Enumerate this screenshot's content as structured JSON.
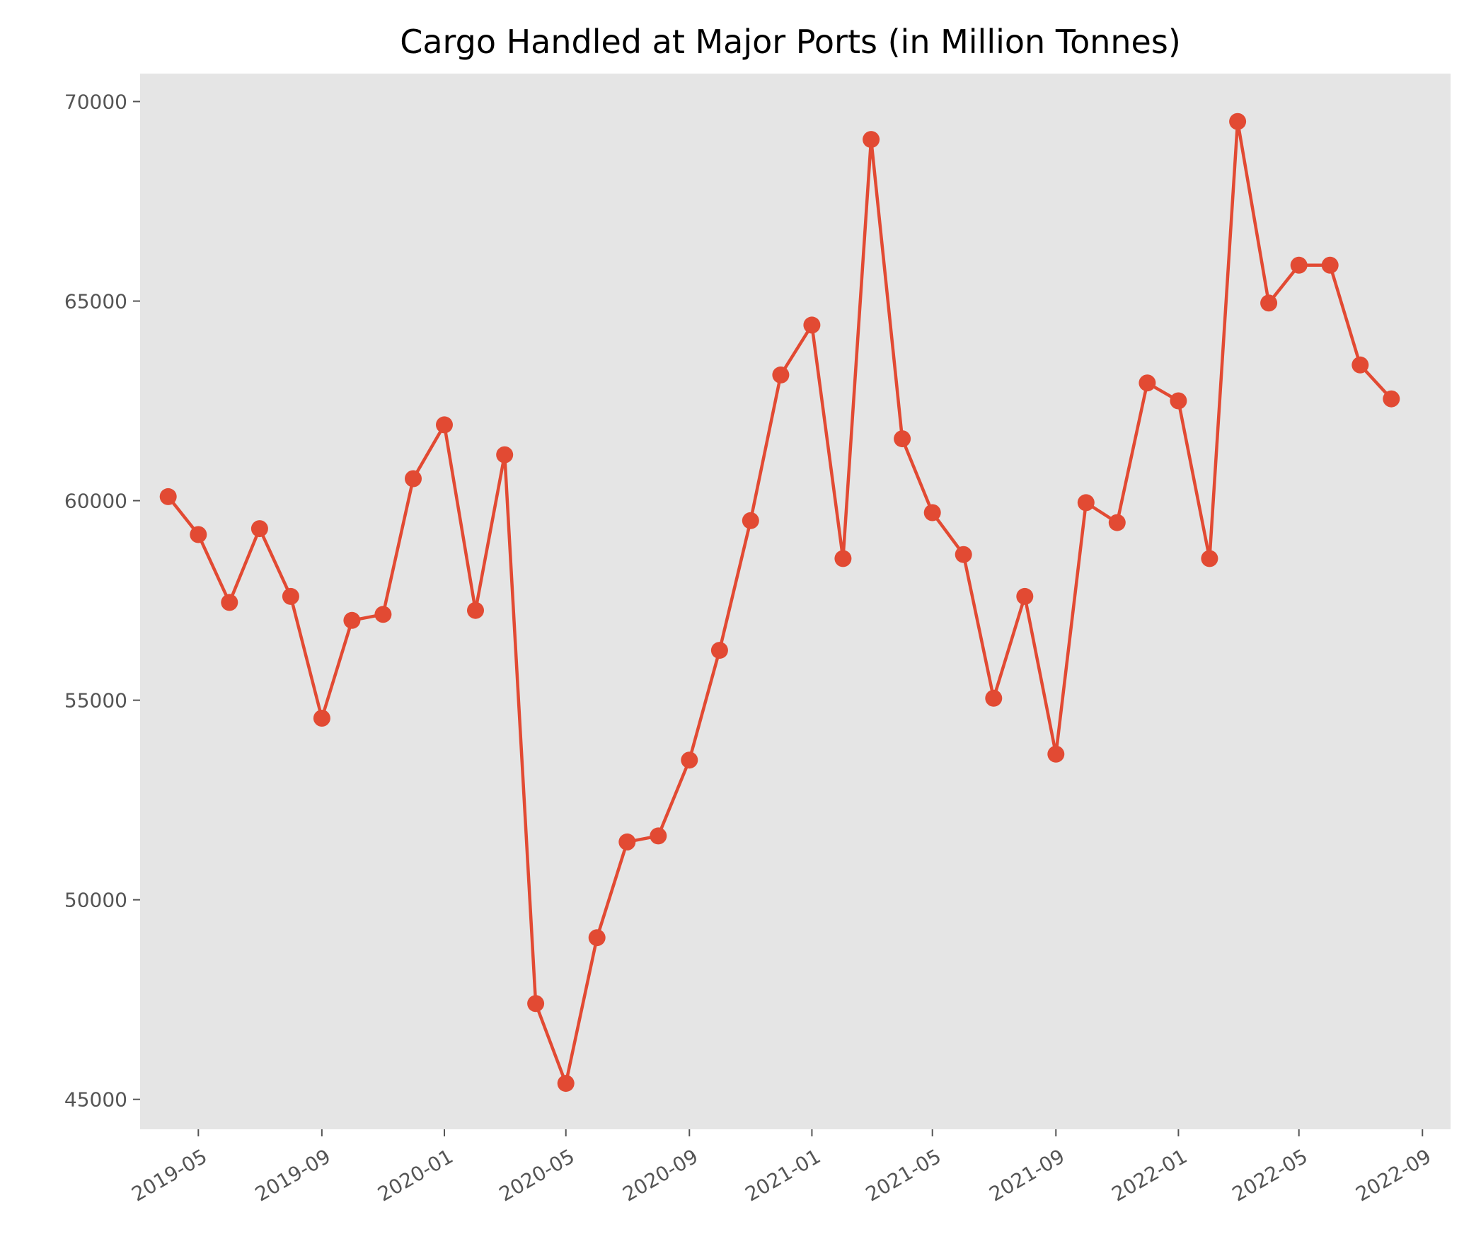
{
  "chart_data": {
    "type": "line",
    "title": "Cargo Handled at Major Ports (in Million Tonnes)",
    "xlabel": "",
    "ylabel": "",
    "x": [
      "2019-04-01",
      "2019-05-01",
      "2019-06-01",
      "2019-07-01",
      "2019-08-01",
      "2019-09-01",
      "2019-10-01",
      "2019-11-01",
      "2019-12-01",
      "2020-01-01",
      "2020-02-01",
      "2020-03-01",
      "2020-04-01",
      "2020-05-01",
      "2020-06-01",
      "2020-07-01",
      "2020-08-01",
      "2020-09-01",
      "2020-10-01",
      "2020-11-01",
      "2020-12-01",
      "2021-01-01",
      "2021-02-01",
      "2021-03-01",
      "2021-04-01",
      "2021-05-01",
      "2021-06-01",
      "2021-07-01",
      "2021-08-01",
      "2021-09-01",
      "2021-10-01",
      "2021-11-01",
      "2021-12-01",
      "2022-01-01",
      "2022-02-01",
      "2022-03-01",
      "2022-04-01",
      "2022-05-01",
      "2022-06-01",
      "2022-07-01",
      "2022-08-01"
    ],
    "series": [
      {
        "values": [
          60100,
          59150,
          57450,
          59300,
          57600,
          54550,
          57000,
          57150,
          60550,
          61900,
          57250,
          61150,
          47400,
          45400,
          49050,
          51450,
          51600,
          53500,
          56250,
          59500,
          63150,
          64400,
          58550,
          69050,
          61550,
          59700,
          58650,
          55050,
          57600,
          53650,
          59950,
          59450,
          62950,
          62500,
          58550,
          69500,
          64950,
          65900,
          65900,
          63400,
          62550
        ]
      }
    ],
    "x_ticks": [
      "2019-05",
      "2019-09",
      "2020-01",
      "2020-05",
      "2020-09",
      "2021-01",
      "2021-05",
      "2021-09",
      "2022-01",
      "2022-05",
      "2022-09"
    ],
    "y_ticks": [
      45000,
      50000,
      55000,
      60000,
      65000,
      70000
    ],
    "xlim": [
      "2019-03-04",
      "2022-09-29"
    ],
    "ylim": [
      44250,
      70700
    ],
    "grid": false,
    "colors": {
      "line": "#e24a33",
      "plot_background": "#e5e5e5",
      "tick": "#555555"
    }
  }
}
